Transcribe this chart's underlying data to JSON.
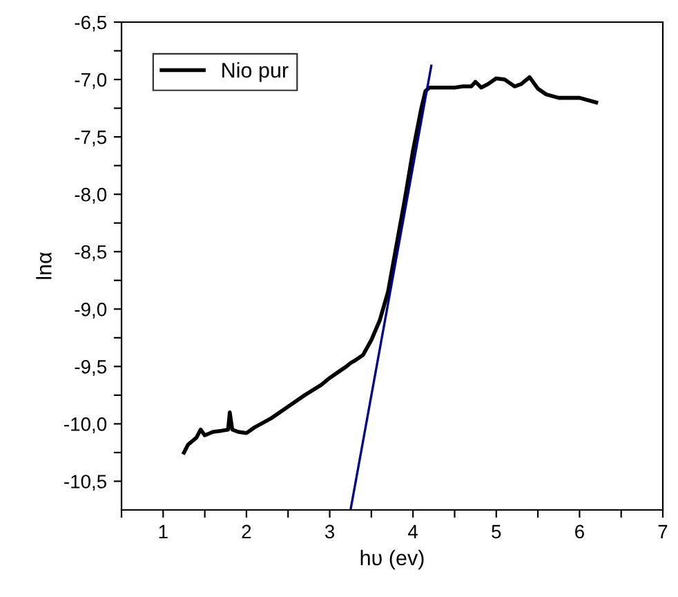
{
  "chart_data": {
    "type": "line",
    "xlabel": "hυ (ev)",
    "ylabel": "lnα",
    "xlim": [
      0.5,
      7
    ],
    "ylim": [
      -10.75,
      -6.5
    ],
    "xticks": [
      {
        "value": 0.5,
        "label": null
      },
      1,
      {
        "value": 1.5,
        "label": null
      },
      2,
      {
        "value": 2.5,
        "label": null
      },
      3,
      {
        "value": 3.5,
        "label": null
      },
      4,
      {
        "value": 4.5,
        "label": null
      },
      5,
      {
        "value": 5.5,
        "label": null
      },
      6,
      {
        "value": 6.5,
        "label": null
      },
      7
    ],
    "yticks": [
      {
        "value": -10.5,
        "label": "-10,5"
      },
      {
        "value": -10.25,
        "label": null
      },
      {
        "value": -10,
        "label": "-10,0"
      },
      {
        "value": -9.75,
        "label": null
      },
      {
        "value": -9.5,
        "label": "-9,5"
      },
      {
        "value": -9.25,
        "label": null
      },
      {
        "value": -9,
        "label": "-9,0"
      },
      {
        "value": -8.75,
        "label": null
      },
      {
        "value": -8.5,
        "label": "-8,5"
      },
      {
        "value": -8.25,
        "label": null
      },
      {
        "value": -8,
        "label": "-8,0"
      },
      {
        "value": -7.75,
        "label": null
      },
      {
        "value": -7.5,
        "label": "-7,5"
      },
      {
        "value": -7.25,
        "label": null
      },
      {
        "value": -7,
        "label": "-7,0"
      },
      {
        "value": -6.75,
        "label": null
      },
      {
        "value": -6.5,
        "label": "-6,5"
      }
    ],
    "legend": "top left",
    "grid": false,
    "series": [
      {
        "name": "Nio pur",
        "color": "#000000",
        "x": [
          1.25,
          1.3,
          1.4,
          1.45,
          1.5,
          1.6,
          1.7,
          1.78,
          1.8,
          1.83,
          1.9,
          2.0,
          2.1,
          2.3,
          2.5,
          2.7,
          2.9,
          3.0,
          3.1,
          3.2,
          3.25,
          3.3,
          3.4,
          3.5,
          3.6,
          3.7,
          3.8,
          3.9,
          4.0,
          4.1,
          4.15,
          4.2,
          4.3,
          4.5,
          4.6,
          4.7,
          4.75,
          4.82,
          4.9,
          5.0,
          5.1,
          5.22,
          5.3,
          5.4,
          5.5,
          5.6,
          5.75,
          6.0,
          6.2
        ],
        "values": [
          -10.25,
          -10.18,
          -10.12,
          -10.05,
          -10.1,
          -10.07,
          -10.06,
          -10.05,
          -9.9,
          -10.05,
          -10.07,
          -10.08,
          -10.03,
          -9.95,
          -9.85,
          -9.75,
          -9.66,
          -9.6,
          -9.55,
          -9.5,
          -9.47,
          -9.45,
          -9.4,
          -9.27,
          -9.1,
          -8.85,
          -8.45,
          -8.05,
          -7.62,
          -7.25,
          -7.1,
          -7.07,
          -7.07,
          -7.07,
          -7.06,
          -7.06,
          -7.02,
          -7.07,
          -7.04,
          -6.99,
          -7.0,
          -7.06,
          -7.04,
          -6.98,
          -7.08,
          -7.13,
          -7.16,
          -7.16,
          -7.2
        ]
      },
      {
        "type": "line",
        "color": "#00008b",
        "x": [
          3.25,
          4.22
        ],
        "values": [
          -10.75,
          -6.88
        ]
      }
    ]
  }
}
